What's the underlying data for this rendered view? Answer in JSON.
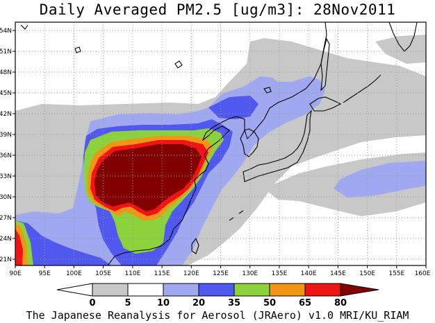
{
  "title": "Daily Averaged PM2.5 [ug/m3]: 28Nov2011",
  "footer": "The Japanese Reanalysis for Aerosol (JRAero) v1.0 MRI/KU_RIAM",
  "lon_labels": [
    "90E",
    "95E",
    "100E",
    "105E",
    "110E",
    "115E",
    "120E",
    "125E",
    "130E",
    "135E",
    "140E",
    "145E",
    "150E",
    "155E",
    "160E"
  ],
  "lat_labels": [
    "21N",
    "24N",
    "27N",
    "30N",
    "33N",
    "36N",
    "39N",
    "42N",
    "45N",
    "48N",
    "51N",
    "54N"
  ],
  "colorbar": {
    "labels": [
      "0",
      "5",
      "10",
      "20",
      "35",
      "50",
      "65",
      "80"
    ],
    "colors": [
      "#ffffff",
      "#c8c8c8",
      "#a0a8f0",
      "#5058f0",
      "#8cd23c",
      "#f09614",
      "#f01414",
      "#820000"
    ]
  },
  "legend_colors": {
    "pm_0_5": "#ffffff",
    "pm_5_10": "#c8c8c8",
    "pm_10_20": "#a0a8f0",
    "pm_20_35": "#5058f0",
    "pm_35_50": "#8cd23c",
    "pm_50_65": "#f09614",
    "pm_65_80": "#f01414",
    "pm_80_plus": "#820000"
  }
}
